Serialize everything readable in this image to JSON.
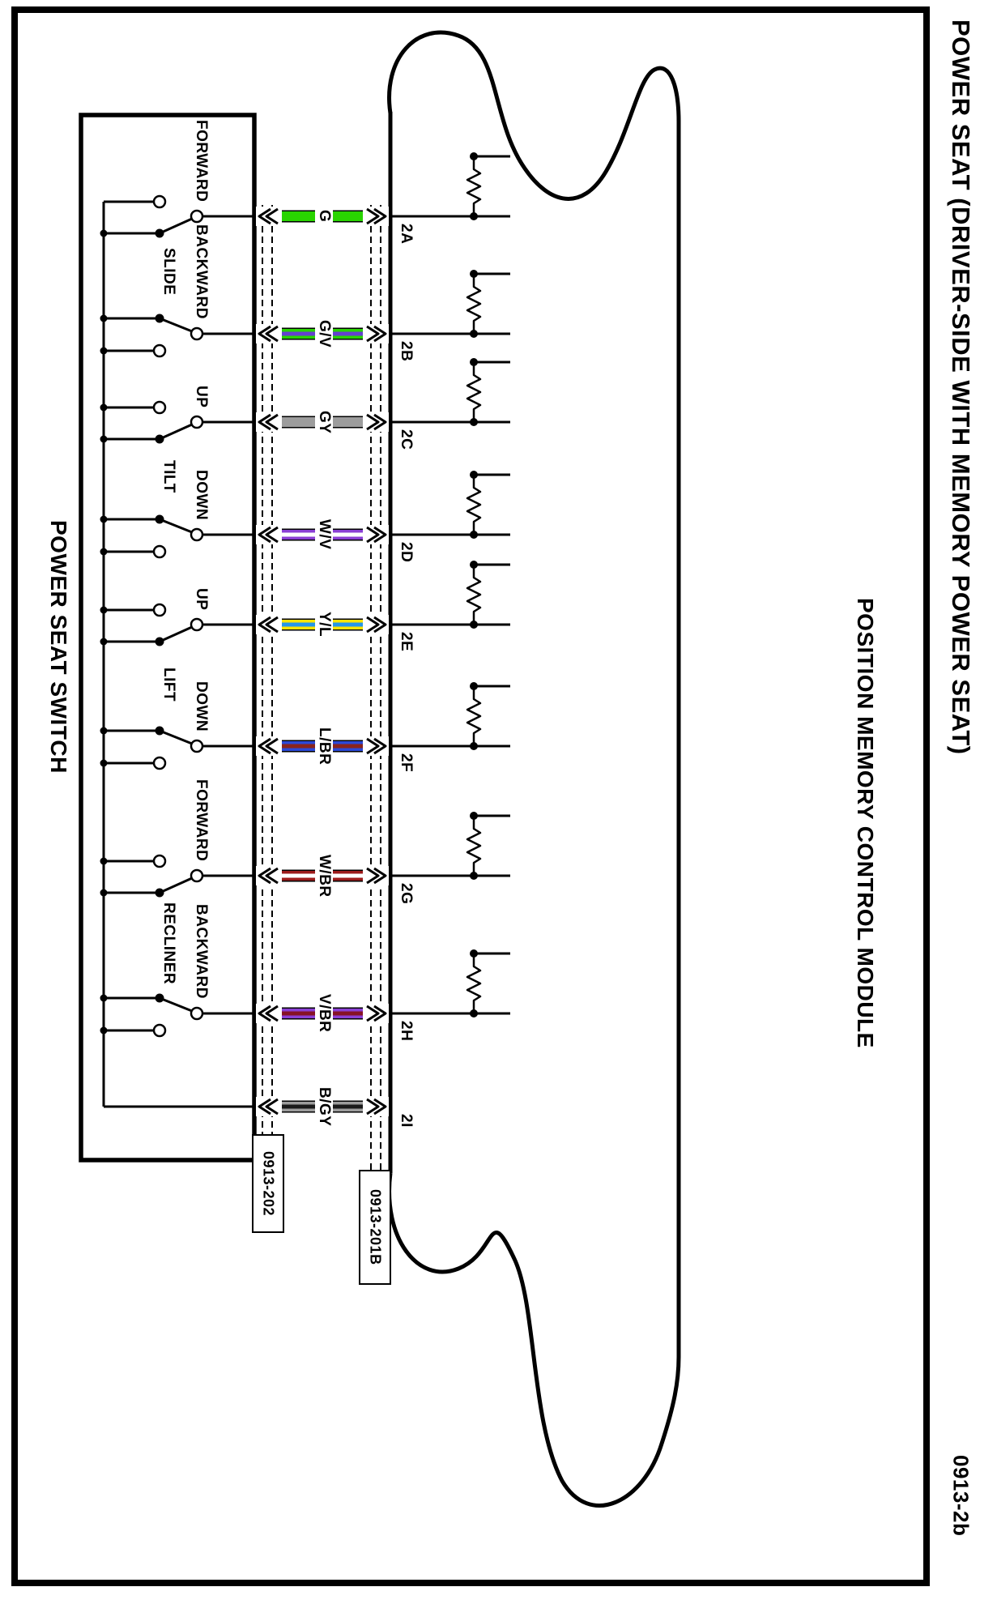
{
  "title": "POWER SEAT (DRIVER-SIDE WITH MEMORY POWER SEAT)",
  "figure_number": "0913-2b",
  "module": {
    "label": "POSITION MEMORY CONTROL MODULE"
  },
  "switch_box": {
    "label": "POWER SEAT SWITCH"
  },
  "connectors": [
    {
      "id": "0913-202"
    },
    {
      "id": "0913-201B"
    }
  ],
  "groups": [
    {
      "name": "SLIDE",
      "throws": [
        "FORWARD",
        "BACKWARD"
      ]
    },
    {
      "name": "TILT",
      "throws": [
        "UP",
        "DOWN"
      ]
    },
    {
      "name": "LIFT",
      "throws": [
        "UP",
        "DOWN"
      ]
    },
    {
      "name": "RECLINER",
      "throws": [
        "FORWARD",
        "BACKWARD"
      ]
    }
  ],
  "wires": [
    {
      "pin": "2A",
      "color_code": "G",
      "band_color": "#29d400",
      "stripe_color": null,
      "switch_group": "SLIDE",
      "switch_throw": "FORWARD",
      "has_resistor": true
    },
    {
      "pin": "2B",
      "color_code": "G/V",
      "band_color": "#29d400",
      "stripe_color": "#6440d0",
      "switch_group": "SLIDE",
      "switch_throw": "BACKWARD",
      "has_resistor": true
    },
    {
      "pin": "2C",
      "color_code": "GY",
      "band_color": "#9c9c9c",
      "stripe_color": null,
      "switch_group": "TILT",
      "switch_throw": "UP",
      "has_resistor": true
    },
    {
      "pin": "2D",
      "color_code": "W/V",
      "band_color": "#8a3fd4",
      "stripe_color": "#ffffff",
      "switch_group": "TILT",
      "switch_throw": "DOWN",
      "has_resistor": true
    },
    {
      "pin": "2E",
      "color_code": "Y/L",
      "band_color": "#ffe400",
      "stripe_color": "#2596e8",
      "switch_group": "LIFT",
      "switch_throw": "UP",
      "has_resistor": true
    },
    {
      "pin": "2F",
      "color_code": "L/BR",
      "band_color": "#2b49d8",
      "stripe_color": "#8a241c",
      "switch_group": "LIFT",
      "switch_throw": "DOWN",
      "has_resistor": true
    },
    {
      "pin": "2G",
      "color_code": "W/BR",
      "band_color": "#9c1a1a",
      "stripe_color": "#ffffff",
      "switch_group": "RECLINER",
      "switch_throw": "FORWARD",
      "has_resistor": true
    },
    {
      "pin": "2H",
      "color_code": "V/BR",
      "band_color": "#8a3fd4",
      "stripe_color": "#861225",
      "switch_group": "RECLINER",
      "switch_throw": "BACKWARD",
      "has_resistor": true
    },
    {
      "pin": "2I",
      "color_code": "B/GY",
      "band_color": "#9c9c9c",
      "stripe_color": "#1a1a1a",
      "switch_group": null,
      "switch_throw": null,
      "has_resistor": false
    }
  ],
  "colors": {
    "line": "#000000",
    "background": "#ffffff"
  }
}
